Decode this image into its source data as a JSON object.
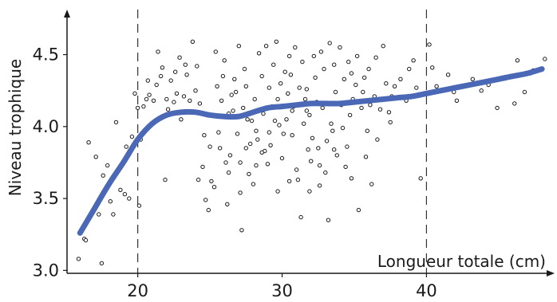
{
  "chart_data": {
    "type": "scatter",
    "title": "",
    "xlabel": "Longueur totale (cm)",
    "ylabel": "Niveau trophique",
    "xlim": [
      15.1,
      48.6
    ],
    "ylim": [
      2.98,
      4.78
    ],
    "x_ticks": [
      20,
      30,
      40
    ],
    "x_tick_labels": [
      "20",
      "30",
      "40"
    ],
    "y_ticks": [
      3.0,
      3.5,
      4.0,
      4.5
    ],
    "y_tick_labels": [
      "3.0",
      "3.5",
      "4.0",
      "4.5"
    ],
    "reference_lines_x": [
      20,
      40
    ],
    "grid": false,
    "legend": "none",
    "colors": {
      "points": "#1a1a1a",
      "smooth": "#4a68b5",
      "axes": "#1a1a1a"
    },
    "series": [
      {
        "kind": "scatter",
        "points": [
          [
            15.9,
            3.08
          ],
          [
            16.3,
            3.22
          ],
          [
            16.4,
            3.21
          ],
          [
            16.6,
            3.89
          ],
          [
            16.9,
            3.42
          ],
          [
            17.1,
            3.79
          ],
          [
            17.3,
            3.39
          ],
          [
            17.5,
            3.05
          ],
          [
            17.6,
            3.66
          ],
          [
            17.9,
            3.73
          ],
          [
            18.1,
            3.48
          ],
          [
            18.3,
            3.39
          ],
          [
            18.5,
            4.03
          ],
          [
            18.8,
            3.56
          ],
          [
            19.1,
            3.53
          ],
          [
            19.4,
            3.5
          ],
          [
            19.6,
            3.93
          ],
          [
            19.8,
            4.23
          ],
          [
            20.1,
            3.45
          ],
          [
            20.2,
            3.91
          ],
          [
            20.4,
            4.14
          ],
          [
            20.6,
            4.19
          ],
          [
            20.8,
            4.22
          ],
          [
            21.1,
            4.18
          ],
          [
            21.3,
            4.29
          ],
          [
            21.6,
            4.35
          ],
          [
            21.7,
            4.41
          ],
          [
            21.9,
            3.63
          ],
          [
            22.1,
            4.12
          ],
          [
            22.3,
            4.32
          ],
          [
            22.5,
            4.17
          ],
          [
            22.7,
            4.23
          ],
          [
            22.9,
            4.48
          ],
          [
            23.2,
            4.21
          ],
          [
            23.4,
            4.36
          ],
          [
            23.6,
            4.18
          ],
          [
            23.8,
            4.59
          ],
          [
            24.1,
            4.42
          ],
          [
            24.2,
            3.63
          ],
          [
            24.5,
            3.72
          ],
          [
            24.7,
            3.49
          ],
          [
            24.9,
            3.42
          ],
          [
            25.1,
            3.62
          ],
          [
            25.3,
            3.58
          ],
          [
            25.5,
            4.28
          ],
          [
            25.7,
            3.85
          ],
          [
            25.9,
            4.35
          ],
          [
            26.1,
            3.75
          ],
          [
            26.3,
            4.09
          ],
          [
            26.4,
            3.8
          ],
          [
            26.6,
            4.11
          ],
          [
            26.8,
            4.24
          ],
          [
            27.1,
            3.54
          ],
          [
            27.2,
            3.28
          ],
          [
            27.4,
            4.4
          ],
          [
            27.5,
            3.85
          ],
          [
            27.6,
            4.05
          ],
          [
            27.8,
            3.88
          ],
          [
            28.1,
            4.19
          ],
          [
            28.2,
            3.73
          ],
          [
            28.3,
            3.91
          ],
          [
            28.5,
            4.12
          ],
          [
            28.6,
            4.35
          ],
          [
            28.8,
            3.83
          ],
          [
            29.1,
            4.27
          ],
          [
            29.2,
            3.87
          ],
          [
            29.4,
            4.43
          ],
          [
            29.5,
            4.04
          ],
          [
            29.7,
            4.19
          ],
          [
            29.8,
            4.01
          ],
          [
            30.1,
            3.95
          ],
          [
            30.2,
            4.38
          ],
          [
            30.4,
            4.23
          ],
          [
            30.5,
            4.49
          ],
          [
            30.7,
            3.94
          ],
          [
            30.8,
            4.14
          ],
          [
            31.1,
            3.63
          ],
          [
            31.2,
            4.27
          ],
          [
            31.3,
            3.37
          ],
          [
            31.5,
            4.02
          ],
          [
            31.7,
            4.26
          ],
          [
            31.8,
            3.84
          ],
          [
            32.1,
            3.92
          ],
          [
            32.2,
            4.49
          ],
          [
            32.4,
            4.17
          ],
          [
            32.6,
            3.59
          ],
          [
            32.8,
            4.13
          ],
          [
            33.1,
            3.9
          ],
          [
            33.2,
            3.35
          ],
          [
            33.4,
            4.02
          ],
          [
            33.6,
            4.43
          ],
          [
            33.8,
            3.8
          ],
          [
            34.1,
            4.15
          ],
          [
            34.2,
            3.99
          ],
          [
            34.4,
            3.72
          ],
          [
            34.6,
            4.45
          ],
          [
            34.8,
            4.37
          ],
          [
            35.1,
            4.29
          ],
          [
            35.3,
            3.42
          ],
          [
            35.5,
            4.13
          ],
          [
            35.8,
            3.79
          ],
          [
            36.1,
            4.15
          ],
          [
            36.2,
            3.6
          ],
          [
            36.5,
            4.48
          ],
          [
            36.8,
            4.12
          ],
          [
            37.2,
            4.3
          ],
          [
            37.5,
            4.03
          ],
          [
            37.8,
            4.28
          ],
          [
            38.2,
            4.33
          ],
          [
            38.6,
            4.18
          ],
          [
            39.1,
            4.46
          ],
          [
            39.6,
            3.64
          ],
          [
            40.2,
            4.57
          ],
          [
            40.7,
            4.28
          ],
          [
            41.5,
            4.36
          ],
          [
            42.1,
            4.18
          ],
          [
            43.2,
            4.33
          ],
          [
            44.3,
            4.29
          ],
          [
            44.9,
            4.13
          ],
          [
            46.1,
            4.16
          ],
          [
            46.3,
            4.46
          ],
          [
            47.2,
            4.37
          ],
          [
            47.4,
            4.39
          ],
          [
            48.2,
            4.47
          ],
          [
            22.0,
            4.19
          ],
          [
            23.0,
            4.05
          ],
          [
            24.0,
            4.25
          ],
          [
            25.2,
            4.08
          ],
          [
            26.0,
            4.46
          ],
          [
            26.7,
            4.33
          ],
          [
            27.0,
            4.56
          ],
          [
            27.9,
            4.04
          ],
          [
            28.4,
            4.51
          ],
          [
            28.9,
            4.56
          ],
          [
            29.3,
            4.14
          ],
          [
            29.9,
            4.3
          ],
          [
            30.3,
            4.05
          ],
          [
            30.9,
            4.55
          ],
          [
            31.4,
            4.45
          ],
          [
            31.9,
            4.08
          ],
          [
            32.3,
            4.34
          ],
          [
            32.7,
            4.52
          ],
          [
            33.3,
            4.58
          ],
          [
            33.7,
            4.24
          ],
          [
            34.3,
            4.33
          ],
          [
            34.7,
            4.08
          ],
          [
            35.2,
            4.49
          ],
          [
            35.7,
            4.34
          ],
          [
            36.4,
            4.21
          ],
          [
            37.0,
            4.56
          ],
          [
            25.4,
            4.52
          ],
          [
            26.5,
            4.22
          ],
          [
            27.3,
            4.13
          ],
          [
            28.7,
            4.09
          ],
          [
            29.6,
            4.59
          ],
          [
            30.6,
            4.36
          ],
          [
            31.6,
            4.19
          ],
          [
            32.9,
            4.4
          ],
          [
            34.0,
            4.55
          ],
          [
            34.9,
            4.19
          ],
          [
            36.0,
            4.4
          ],
          [
            37.4,
            4.1
          ],
          [
            30.0,
            3.78
          ],
          [
            31.0,
            3.7
          ],
          [
            32.0,
            3.76
          ],
          [
            33.0,
            3.68
          ],
          [
            27.7,
            3.67
          ],
          [
            28.0,
            3.6
          ],
          [
            29.0,
            3.74
          ],
          [
            26.2,
            3.46
          ],
          [
            25.6,
            3.96
          ],
          [
            24.6,
            3.94
          ],
          [
            24.3,
            4.16
          ],
          [
            23.3,
            4.43
          ],
          [
            22.6,
            4.38
          ],
          [
            21.4,
            4.52
          ],
          [
            20.7,
            4.32
          ],
          [
            20.0,
            4.13
          ],
          [
            19.2,
            3.86
          ],
          [
            36.6,
            3.91
          ],
          [
            35.6,
            4.24
          ],
          [
            34.5,
            3.86
          ],
          [
            33.5,
            3.97
          ],
          [
            32.5,
            3.85
          ],
          [
            31.7,
            4.11
          ],
          [
            30.7,
            4.11
          ],
          [
            29.1,
            3.96
          ],
          [
            28.2,
            3.97
          ],
          [
            27.5,
            4.28
          ],
          [
            26.9,
            3.95
          ],
          [
            25.8,
            4.18
          ],
          [
            33.6,
            3.84
          ],
          [
            34.8,
            3.64
          ],
          [
            35.9,
            3.97
          ],
          [
            31.9,
            3.55
          ],
          [
            29.7,
            3.55
          ],
          [
            28.6,
            3.82
          ],
          [
            27.1,
            3.75
          ],
          [
            26.3,
            3.68
          ],
          [
            25.0,
            3.86
          ],
          [
            30.5,
            3.62
          ],
          [
            32.6,
            3.73
          ],
          [
            37.6,
            4.21
          ],
          [
            38.8,
            4.4
          ],
          [
            39.3,
            4.27
          ],
          [
            40.4,
            4.41
          ],
          [
            41.9,
            4.24
          ],
          [
            43.8,
            4.25
          ],
          [
            45.8,
            4.35
          ],
          [
            46.8,
            4.24
          ]
        ]
      },
      {
        "kind": "line",
        "points": [
          [
            16.0,
            3.26
          ],
          [
            17.0,
            3.43
          ],
          [
            18.0,
            3.6
          ],
          [
            19.0,
            3.75
          ],
          [
            20.0,
            3.91
          ],
          [
            21.0,
            4.02
          ],
          [
            22.0,
            4.08
          ],
          [
            23.0,
            4.1
          ],
          [
            24.0,
            4.1
          ],
          [
            25.0,
            4.08
          ],
          [
            26.0,
            4.07
          ],
          [
            27.0,
            4.07
          ],
          [
            28.0,
            4.1
          ],
          [
            29.0,
            4.13
          ],
          [
            30.0,
            4.14
          ],
          [
            31.0,
            4.15
          ],
          [
            32.0,
            4.16
          ],
          [
            33.0,
            4.16
          ],
          [
            34.0,
            4.16
          ],
          [
            35.0,
            4.17
          ],
          [
            36.0,
            4.18
          ],
          [
            37.0,
            4.19
          ],
          [
            38.0,
            4.2
          ],
          [
            39.0,
            4.21
          ],
          [
            40.0,
            4.23
          ],
          [
            41.0,
            4.25
          ],
          [
            42.0,
            4.27
          ],
          [
            43.0,
            4.29
          ],
          [
            44.0,
            4.31
          ],
          [
            45.0,
            4.33
          ],
          [
            46.0,
            4.35
          ],
          [
            47.0,
            4.37
          ],
          [
            48.0,
            4.4
          ]
        ]
      }
    ]
  }
}
